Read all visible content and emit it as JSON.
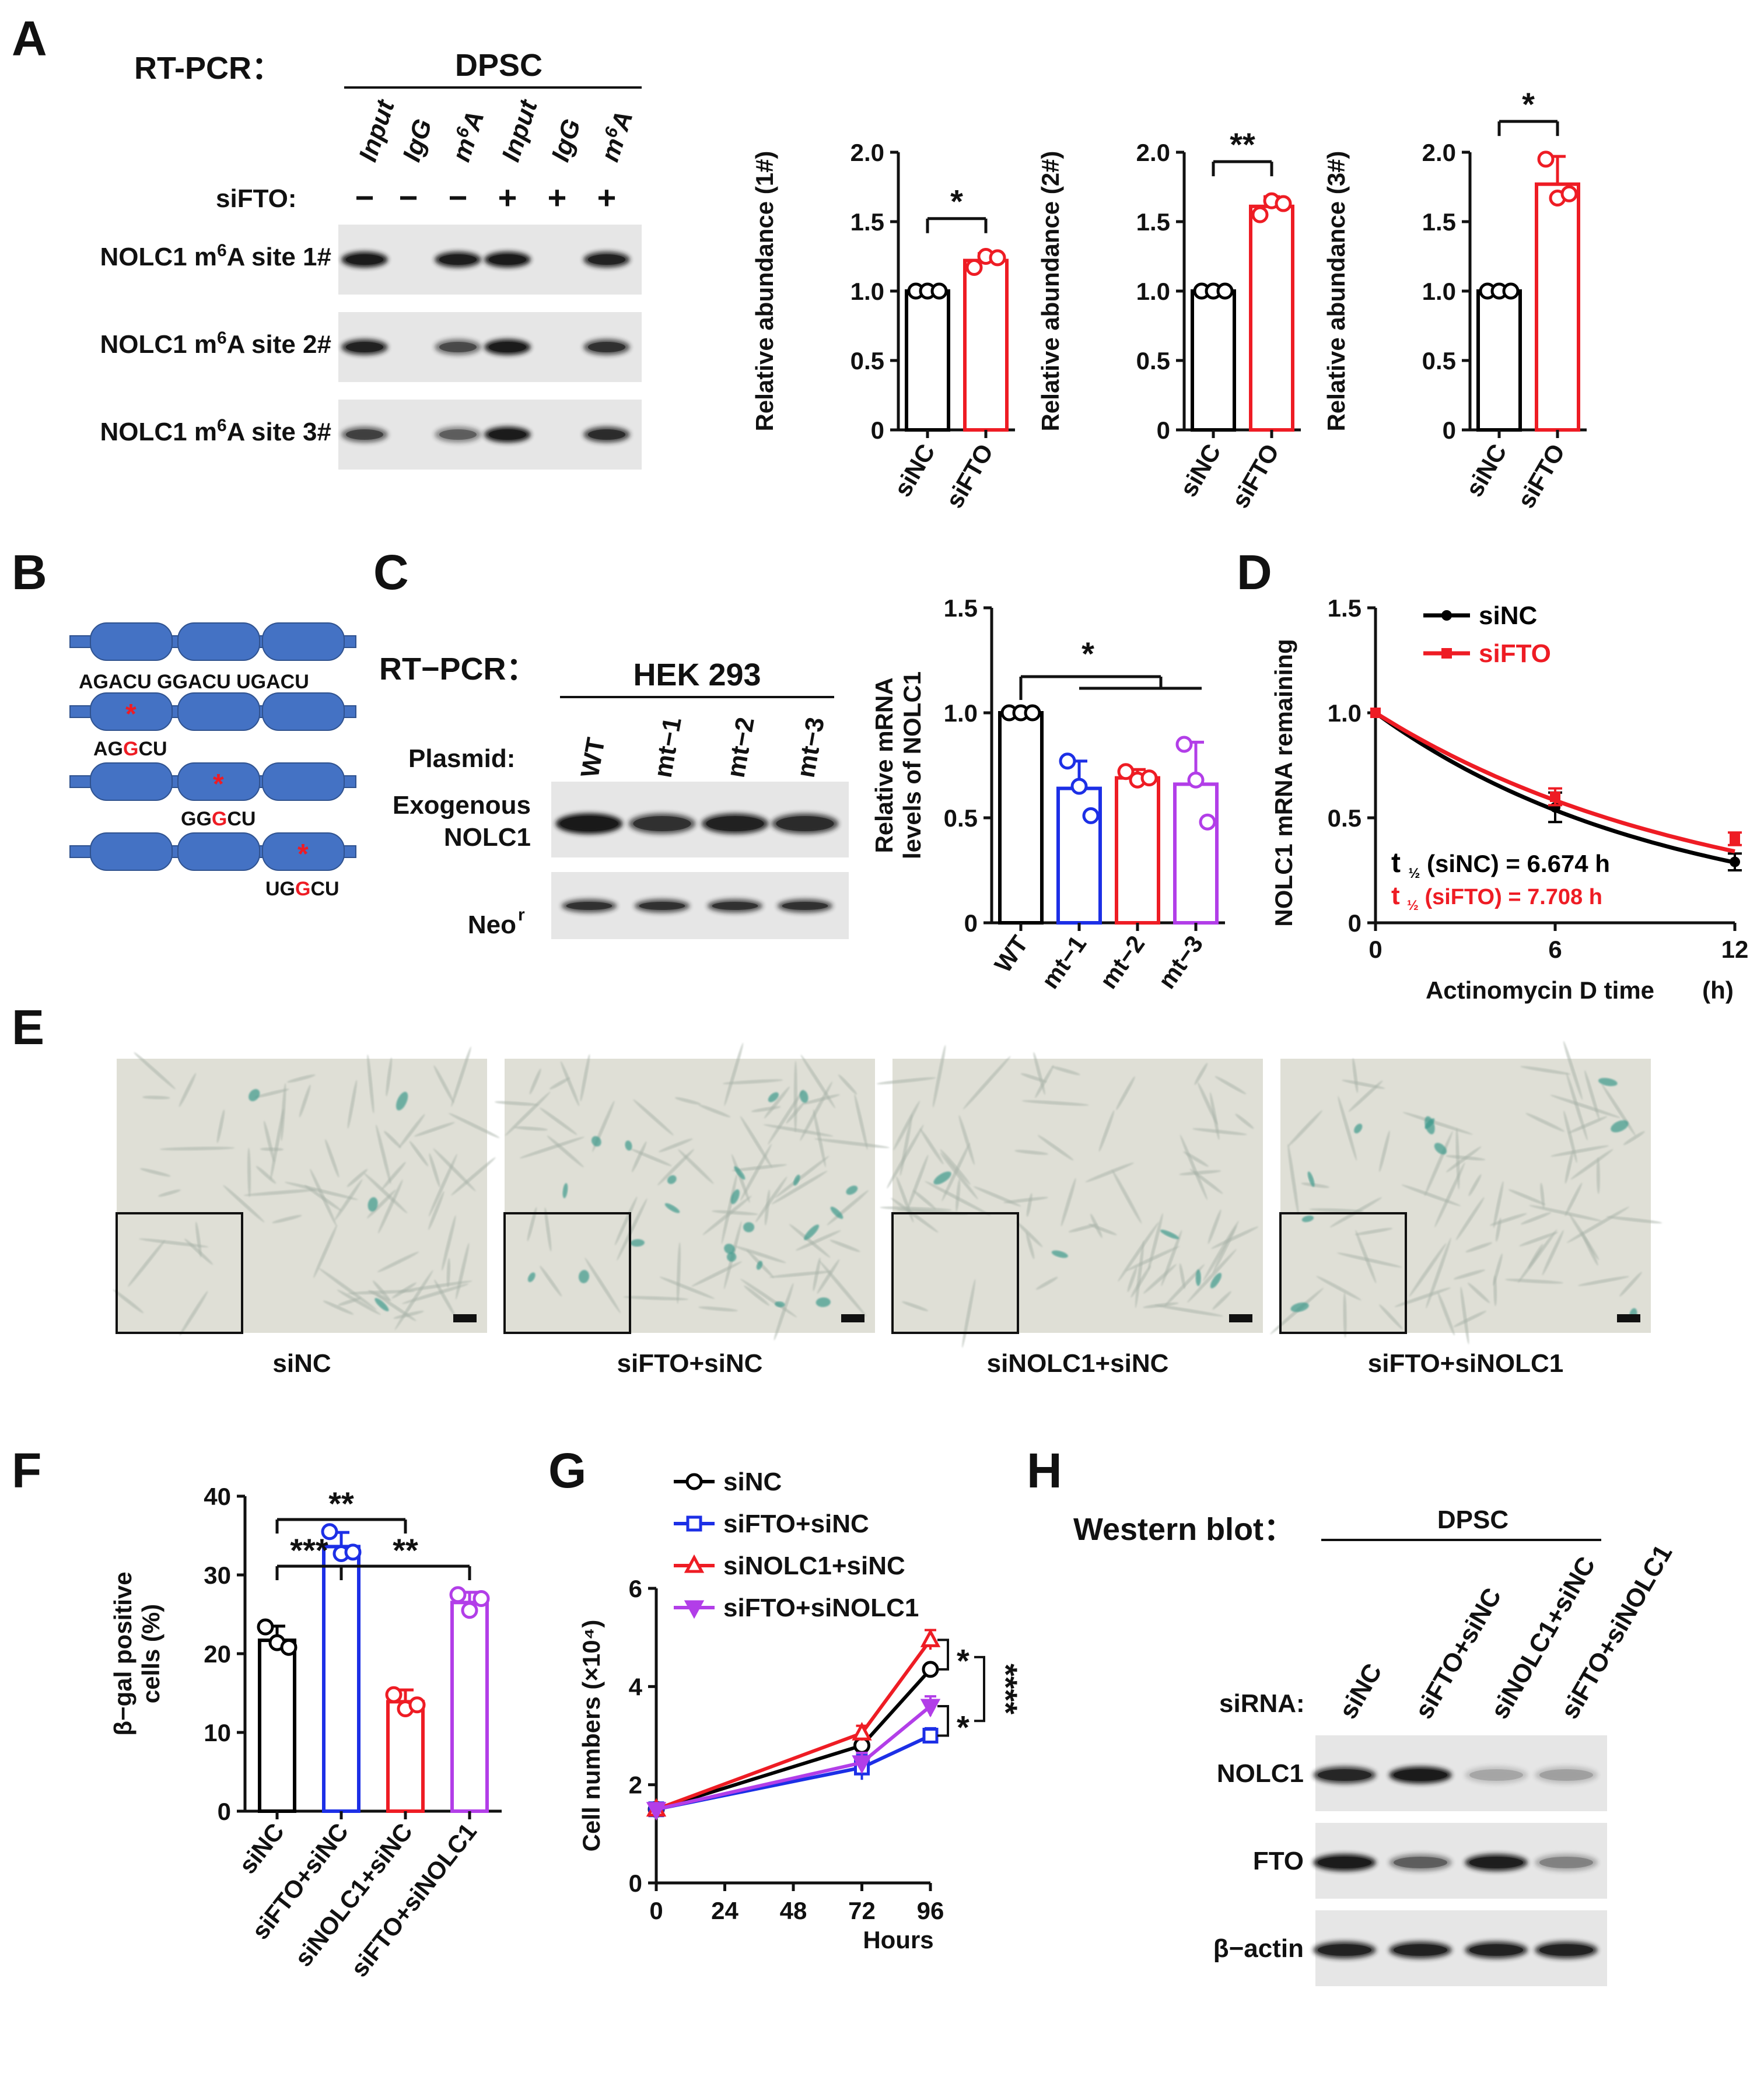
{
  "panels": [
    "A",
    "B",
    "C",
    "D",
    "E",
    "F",
    "G",
    "H"
  ],
  "colors": {
    "black": "#000000",
    "red": "#ee1c24",
    "blue": "#1c2fe6",
    "purple": "#b23ee8",
    "gel": "#e6e6e6",
    "band": "#1a1a1a",
    "cell_bg": "#dfdfd6",
    "schema_blue": "#4472c4"
  },
  "panelA": {
    "method": "RT-PCR：",
    "cell": "DPSC",
    "lanes": [
      "Input",
      "IgG",
      "m6A",
      "Input",
      "IgG",
      "m6A"
    ],
    "sifto_label": "siFTO:",
    "sifto_signs": [
      "−",
      "−",
      "−",
      "+",
      "+",
      "+"
    ],
    "rows": [
      "NOLC1 m6A site 1#",
      "NOLC1 m6A site 2#",
      "NOLC1 m6A site 3#"
    ]
  },
  "panelB": {
    "motifs": "AGACU  GGACU  UGACU",
    "mutants": [
      [
        "AG",
        "G",
        "CU"
      ],
      [
        "GG",
        "G",
        "CU"
      ],
      [
        "UG",
        "G",
        "CU"
      ]
    ]
  },
  "panelC": {
    "method": "RT−PCR：",
    "cell": "HEK 293",
    "plasmid_label": "Plasmid:",
    "plasmids": [
      "WT",
      "mt−1",
      "mt−2",
      "mt−3"
    ],
    "row1": "Exogenous",
    "row1b": "NOLC1",
    "row2": "Neo",
    "row2_sup": "r"
  },
  "panelE": {
    "captions": [
      "siNC",
      "siFTO+siNC",
      "siNOLC1+siNC",
      "siFTO+siNOLC1"
    ]
  },
  "panelH": {
    "method": "Western blot：",
    "cell": "DPSC",
    "sirna_label": "siRNA:",
    "lanes": [
      "siNC",
      "siFTO+siNC",
      "siNOLC1+siNC",
      "siFTO+siNOLC1"
    ],
    "rows": [
      "NOLC1",
      "FTO",
      "β−actin"
    ]
  },
  "chart_data": [
    {
      "id": "A1",
      "type": "bar",
      "ylabel": "Relative abundance (1#)",
      "categories": [
        "siNC",
        "siFTO"
      ],
      "values": [
        1.0,
        1.22
      ],
      "errors": [
        0,
        0.05
      ],
      "points": [
        [
          1.0,
          1.0,
          1.0
        ],
        [
          1.17,
          1.25,
          1.24
        ]
      ],
      "ylim": [
        0,
        2.0
      ],
      "yticks": [
        0,
        0.5,
        1.0,
        1.5,
        2.0
      ],
      "colors": [
        "#000000",
        "#ee1c24"
      ],
      "significance": [
        "*"
      ]
    },
    {
      "id": "A2",
      "type": "bar",
      "ylabel": "Relative abundance (2#)",
      "categories": [
        "siNC",
        "siFTO"
      ],
      "values": [
        1.0,
        1.61
      ],
      "errors": [
        0,
        0.07
      ],
      "points": [
        [
          1.0,
          1.0,
          1.0
        ],
        [
          1.55,
          1.65,
          1.63
        ]
      ],
      "ylim": [
        0,
        2.0
      ],
      "yticks": [
        0,
        0.5,
        1.0,
        1.5,
        2.0
      ],
      "colors": [
        "#000000",
        "#ee1c24"
      ],
      "significance": [
        "**"
      ]
    },
    {
      "id": "A3",
      "type": "bar",
      "ylabel": "Relative abundance (3#)",
      "categories": [
        "siNC",
        "siFTO"
      ],
      "values": [
        1.0,
        1.77
      ],
      "errors": [
        0,
        0.2
      ],
      "points": [
        [
          1.0,
          1.0,
          1.0
        ],
        [
          1.95,
          1.67,
          1.7
        ]
      ],
      "ylim": [
        0,
        2.0
      ],
      "yticks": [
        0,
        0.5,
        1.0,
        1.5,
        2.0
      ],
      "colors": [
        "#000000",
        "#ee1c24"
      ],
      "significance": [
        "*"
      ]
    },
    {
      "id": "C",
      "type": "bar",
      "ylabel": "Relative mRNA levels of NOLC1",
      "categories": [
        "WT",
        "mt−1",
        "mt−2",
        "mt−3"
      ],
      "values": [
        1.0,
        0.64,
        0.69,
        0.66
      ],
      "errors": [
        0,
        0.13,
        0.04,
        0.2
      ],
      "points": [
        [
          1.0,
          1.0,
          1.0
        ],
        [
          0.77,
          0.65,
          0.51
        ],
        [
          0.72,
          0.68,
          0.69
        ],
        [
          0.85,
          0.68,
          0.48
        ]
      ],
      "ylim": [
        0,
        1.5
      ],
      "yticks": [
        0,
        0.5,
        1.0,
        1.5
      ],
      "colors": [
        "#000000",
        "#1c2fe6",
        "#ee1c24",
        "#b23ee8"
      ],
      "significance": [
        "*"
      ]
    },
    {
      "id": "D",
      "type": "line",
      "xlabel": "Actinomycin D time",
      "xunit": "(h)",
      "ylabel": "NOLC1 mRNA remaining",
      "x": [
        0,
        6,
        12
      ],
      "xlim": [
        0,
        12
      ],
      "xticks": [
        0,
        6,
        12
      ],
      "ylim": [
        0,
        1.5
      ],
      "yticks": [
        0,
        0.5,
        1.0,
        1.5
      ],
      "series": [
        {
          "name": "siNC",
          "values": [
            1.0,
            0.55,
            0.29
          ],
          "errors": [
            0,
            0.07,
            0.04
          ],
          "color": "#000000"
        },
        {
          "name": "siFTO",
          "values": [
            1.0,
            0.6,
            0.4
          ],
          "errors": [
            0,
            0.04,
            0.03
          ],
          "color": "#ee1c24"
        }
      ],
      "half_life": [
        "t ½ (siNC) = 6.674 h",
        "t ½ (siFTO) = 7.708 h"
      ]
    },
    {
      "id": "F",
      "type": "bar",
      "ylabel": "β−gal positive cells (%)",
      "categories": [
        "siNC",
        "siFTO+siNC",
        "siNOLC1+siNC",
        "siFTO+siNOLC1"
      ],
      "values": [
        21.7,
        33.6,
        13.9,
        26.5
      ],
      "errors": [
        1.8,
        1.8,
        1.5,
        1.3
      ],
      "points": [
        [
          23.4,
          21.4,
          20.8
        ],
        [
          35.5,
          32.7,
          32.9
        ],
        [
          14.8,
          13.0,
          13.5
        ],
        [
          27.5,
          25.5,
          27.0
        ]
      ],
      "ylim": [
        0,
        40
      ],
      "yticks": [
        0,
        10,
        20,
        30,
        40
      ],
      "colors": [
        "#000000",
        "#1c2fe6",
        "#ee1c24",
        "#b23ee8"
      ],
      "significance": [
        "**",
        "***",
        "**"
      ]
    },
    {
      "id": "G",
      "type": "line",
      "xlabel": "Hours",
      "ylabel": "Cell numbers (×10⁴)",
      "x": [
        0,
        72,
        96
      ],
      "xlim": [
        0,
        96
      ],
      "xticks": [
        0,
        24,
        48,
        72,
        96
      ],
      "ylim": [
        0,
        6
      ],
      "yticks": [
        0,
        2,
        4,
        6
      ],
      "series": [
        {
          "name": "siNC",
          "values": [
            1.5,
            2.8,
            4.35
          ],
          "errors": [
            0.05,
            0.2,
            0.1
          ],
          "color": "#000000",
          "marker": "circle"
        },
        {
          "name": "siFTO+siNC",
          "values": [
            1.5,
            2.35,
            3.0
          ],
          "errors": [
            0.05,
            0.25,
            0.15
          ],
          "color": "#1c2fe6",
          "marker": "square"
        },
        {
          "name": "siNOLC1+siNC",
          "values": [
            1.5,
            3.05,
            4.95
          ],
          "errors": [
            0.05,
            0.15,
            0.2
          ],
          "color": "#ee1c24",
          "marker": "triangle"
        },
        {
          "name": "siFTO+siNOLC1",
          "values": [
            1.5,
            2.45,
            3.6
          ],
          "errors": [
            0.05,
            0.2,
            0.2
          ],
          "color": "#b23ee8",
          "marker": "inverted-triangle"
        }
      ],
      "significance": [
        "*",
        "*",
        "****"
      ]
    }
  ]
}
